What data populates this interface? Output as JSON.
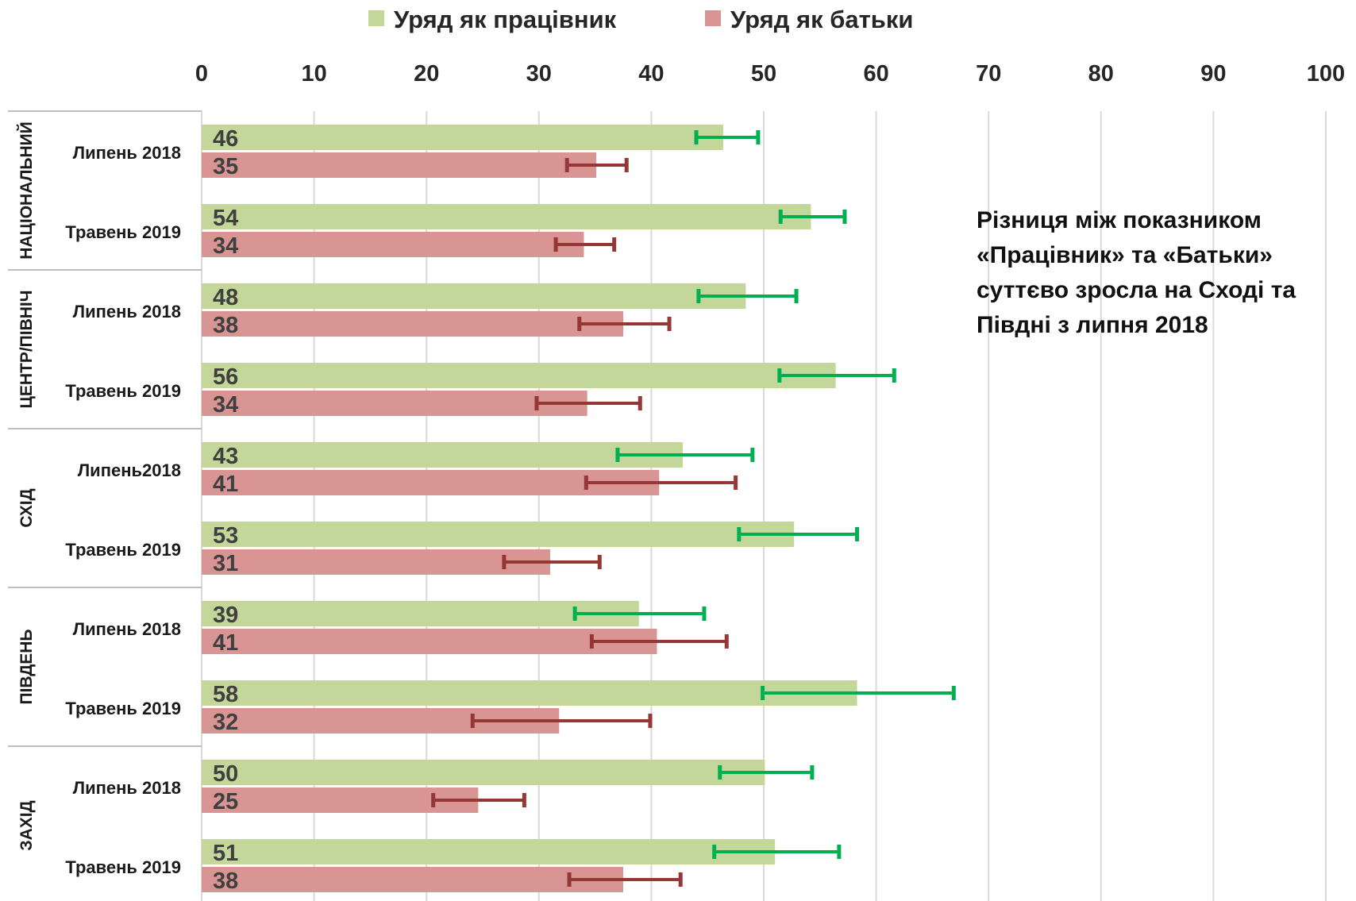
{
  "chart_data": {
    "type": "bar",
    "orientation": "horizontal",
    "xlim": [
      0,
      100
    ],
    "x_ticks": [
      0,
      10,
      20,
      30,
      40,
      50,
      60,
      70,
      80,
      90,
      100
    ],
    "grid": true,
    "legend_position": "top",
    "series": [
      {
        "name": "Уряд як працівник",
        "color": "#c4d79b",
        "error_color": "#00b050"
      },
      {
        "name": "Уряд як батьки",
        "color": "#d99594",
        "error_color": "#953735"
      }
    ],
    "groups": [
      {
        "region": "НАЦІОНАЛЬНИЙ",
        "rows": [
          {
            "label": "Липень 2018",
            "values": [
              46,
              35
            ],
            "errors": [
              [
                44,
                49.5
              ],
              [
                32.5,
                37.8
              ]
            ]
          },
          {
            "label": "Травень 2019",
            "values": [
              54,
              34
            ],
            "errors": [
              [
                51.5,
                57.2
              ],
              [
                31.5,
                36.7
              ]
            ]
          }
        ]
      },
      {
        "region": "ЦЕНТР/ПІВНІЧ",
        "rows": [
          {
            "label": "Липень 2018",
            "values": [
              48,
              38
            ],
            "errors": [
              [
                44.2,
                52.9
              ],
              [
                33.6,
                41.6
              ]
            ]
          },
          {
            "label": "Травень 2019",
            "values": [
              56,
              34
            ],
            "errors": [
              [
                51.4,
                61.6
              ],
              [
                29.8,
                39
              ]
            ]
          }
        ]
      },
      {
        "region": "СХІД",
        "rows": [
          {
            "label": "Липень2018",
            "values": [
              43,
              41
            ],
            "errors": [
              [
                37,
                49
              ],
              [
                34.2,
                47.5
              ]
            ]
          },
          {
            "label": "Травень 2019",
            "values": [
              53,
              31
            ],
            "errors": [
              [
                47.8,
                58.3
              ],
              [
                26.9,
                35.4
              ]
            ]
          }
        ]
      },
      {
        "region": "ПІВДЕНЬ",
        "rows": [
          {
            "label": "Липень 2018",
            "values": [
              39,
              41
            ],
            "errors": [
              [
                33.2,
                44.7
              ],
              [
                34.7,
                46.7
              ]
            ]
          },
          {
            "label": "Травень 2019",
            "values": [
              58,
              32
            ],
            "errors": [
              [
                49.9,
                66.9
              ],
              [
                24.1,
                39.9
              ]
            ]
          }
        ]
      },
      {
        "region": "ЗАХІД",
        "rows": [
          {
            "label": "Липень 2018",
            "values": [
              50,
              25
            ],
            "errors": [
              [
                46.1,
                54.3
              ],
              [
                20.6,
                28.7
              ]
            ]
          },
          {
            "label": "Травень 2019",
            "values": [
              51,
              38
            ],
            "errors": [
              [
                45.6,
                56.7
              ],
              [
                32.7,
                42.6
              ]
            ]
          }
        ]
      }
    ],
    "bar_positions": [
      [
        46.4,
        35.1
      ],
      [
        54.2,
        34.0
      ],
      [
        48.4,
        37.5
      ],
      [
        56.4,
        34.3
      ],
      [
        42.8,
        40.7
      ],
      [
        52.7,
        31.0
      ],
      [
        38.9,
        40.5
      ],
      [
        58.3,
        31.8
      ],
      [
        50.1,
        24.6
      ],
      [
        51.0,
        37.5
      ]
    ]
  },
  "annotation": {
    "lines": [
      "Різниця між показником",
      "«Працівник» та «Батьки»",
      "суттєво зросла на Сході та",
      "Півдні з липня 2018"
    ]
  }
}
